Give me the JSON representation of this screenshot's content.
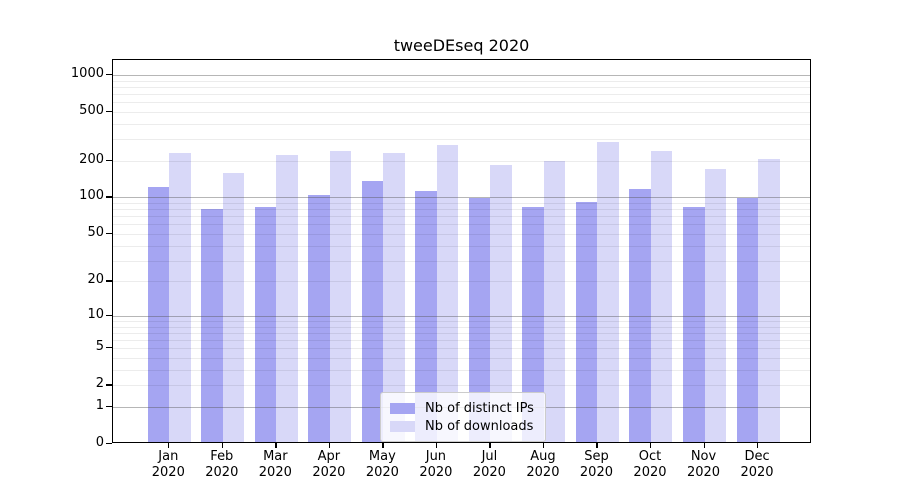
{
  "title": "tweeDEseq 2020",
  "colors": {
    "ips_bar": "#a5a5f2",
    "downloads_bar": "#d8d8f8",
    "major_gridline": "#b0b0b0",
    "minor_gridline": "#ececec",
    "axis": "#000000",
    "legend_border": "#cccccc"
  },
  "legend": {
    "items": [
      {
        "label": "Nb of distinct IPs",
        "series": "ips"
      },
      {
        "label": "Nb of downloads",
        "series": "downloads"
      }
    ]
  },
  "y_axis": {
    "tick_labels": [
      "1000",
      "500",
      "200",
      "100",
      "50",
      "20",
      "10",
      "5",
      "2",
      "1",
      "0"
    ],
    "tick_values": [
      1000,
      500,
      200,
      100,
      50,
      20,
      10,
      5,
      2,
      1,
      0
    ]
  },
  "x_axis": {
    "months": [
      "Jan",
      "Feb",
      "Mar",
      "Apr",
      "May",
      "Jun",
      "Jul",
      "Aug",
      "Sep",
      "Oct",
      "Nov",
      "Dec"
    ],
    "year": "2020"
  },
  "chart_data": {
    "type": "bar",
    "title": "tweeDEseq 2020",
    "categories": [
      "Jan 2020",
      "Feb 2020",
      "Mar 2020",
      "Apr 2020",
      "May 2020",
      "Jun 2020",
      "Jul 2020",
      "Aug 2020",
      "Sep 2020",
      "Oct 2020",
      "Nov 2020",
      "Dec 2020"
    ],
    "series": [
      {
        "name": "Nb of distinct IPs",
        "color": "#a5a5f2",
        "values": [
          118,
          78,
          80,
          100,
          131,
          108,
          96,
          80,
          89,
          112,
          80,
          95
        ]
      },
      {
        "name": "Nb of downloads",
        "color": "#d8d8f8",
        "values": [
          223,
          153,
          215,
          232,
          222,
          257,
          178,
          193,
          273,
          233,
          166,
          199
        ]
      }
    ],
    "xlabel": "",
    "ylabel": "",
    "yscale": "log1p",
    "yticks": [
      0,
      1,
      2,
      5,
      10,
      20,
      50,
      100,
      200,
      500,
      1000
    ],
    "ylim": [
      0,
      1320
    ],
    "grid": true,
    "legend_position": "lower-center"
  }
}
